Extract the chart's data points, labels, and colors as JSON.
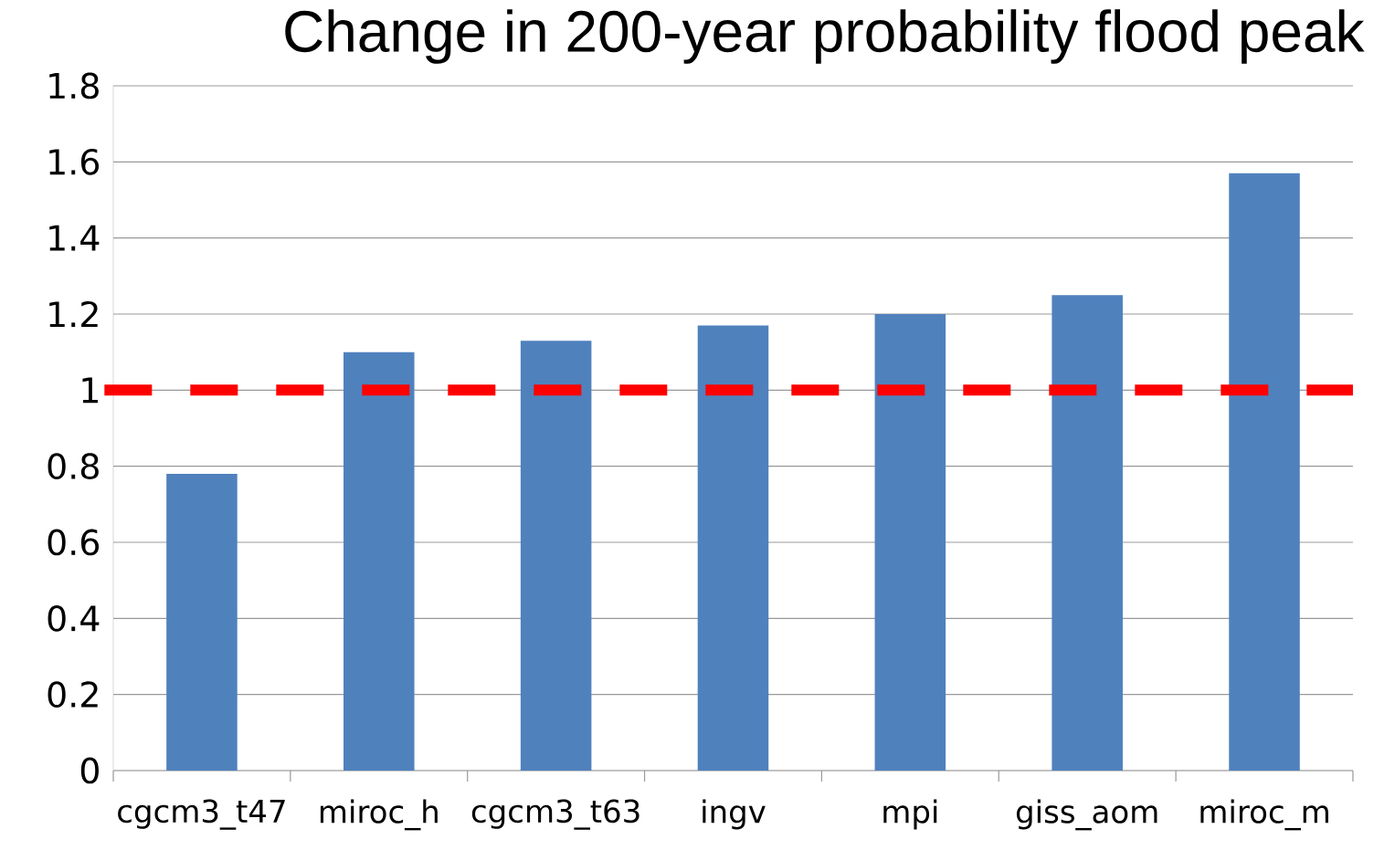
{
  "chart_data": {
    "type": "bar",
    "title": "Change in 200-year probability flood peak",
    "categories": [
      "cgcm3_t47",
      "miroc_h",
      "cgcm3_t63",
      "ingv",
      "mpi",
      "giss_aom",
      "miroc_m"
    ],
    "values": [
      0.78,
      1.1,
      1.13,
      1.17,
      1.2,
      1.25,
      1.57
    ],
    "color": "#4f81bd",
    "ylim": [
      0,
      1.8
    ],
    "yticks": [
      0,
      0.2,
      0.4,
      0.6,
      0.8,
      1,
      1.2,
      1.4,
      1.6,
      1.8
    ],
    "grid": "y",
    "ref_lines": [
      {
        "axis": "y",
        "value": 1,
        "color": "#ff0000",
        "line_style": "dashed"
      }
    ]
  }
}
